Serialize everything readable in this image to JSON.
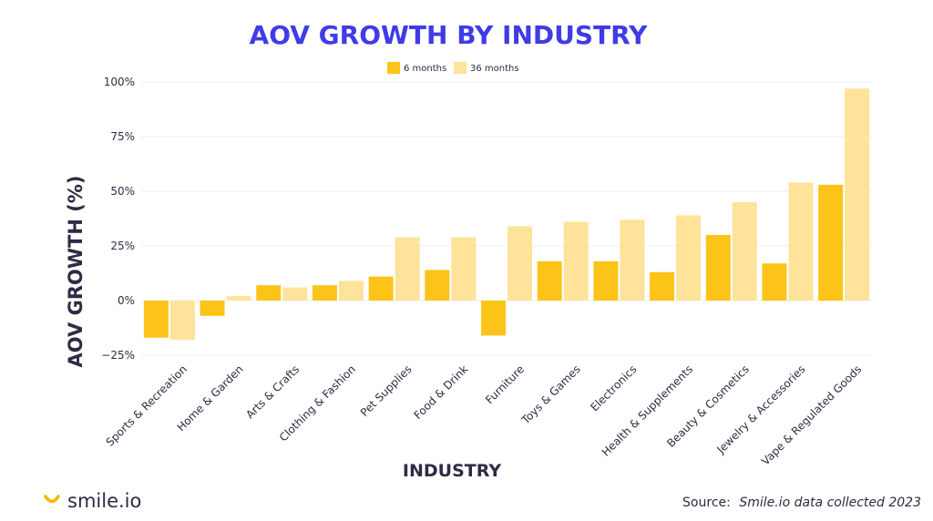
{
  "colors": {
    "title": "#3f3ce6",
    "text": "#2c2c44",
    "series_6m": "#fcc419",
    "series_36m": "#ffe39b",
    "grid": "#ececec",
    "brand_accent": "#f5b800"
  },
  "brand": {
    "name": "smile.io",
    "icon": "smile-logo-icon"
  },
  "source": {
    "label": "Source:",
    "text": "Smile.io data collected 2023"
  },
  "chart_data": {
    "type": "bar",
    "title": "AOV GROWTH BY INDUSTRY",
    "xlabel": "INDUSTRY",
    "ylabel": "AOV GROWTH (%)",
    "ylim": [
      -25,
      100
    ],
    "yticks": [
      100,
      75,
      50,
      25,
      0,
      -25
    ],
    "ytick_labels": [
      "100%",
      "75%",
      "50%",
      "25%",
      "0%",
      "−25%"
    ],
    "grid": true,
    "legend_position": "top-center",
    "categories": [
      "Sports & Recreation",
      "Home & Garden",
      "Arts & Crafts",
      "Clothing & Fashion",
      "Pet Supplies",
      "Food & Drink",
      "Furniture",
      "Toys & Games",
      "Electronics",
      "Health & Supplements",
      "Beauty & Cosmetics",
      "Jewelry & Accessories",
      "Vape & Regulated Goods"
    ],
    "series": [
      {
        "name": "6 months",
        "color": "#fcc419",
        "values": [
          -17,
          -7,
          7,
          7,
          11,
          14,
          -16,
          18,
          18,
          13,
          30,
          17,
          53
        ]
      },
      {
        "name": "36 months",
        "color": "#ffe39b",
        "values": [
          -18,
          2,
          6,
          9,
          29,
          29,
          34,
          36,
          37,
          39,
          45,
          54,
          97
        ]
      }
    ]
  }
}
